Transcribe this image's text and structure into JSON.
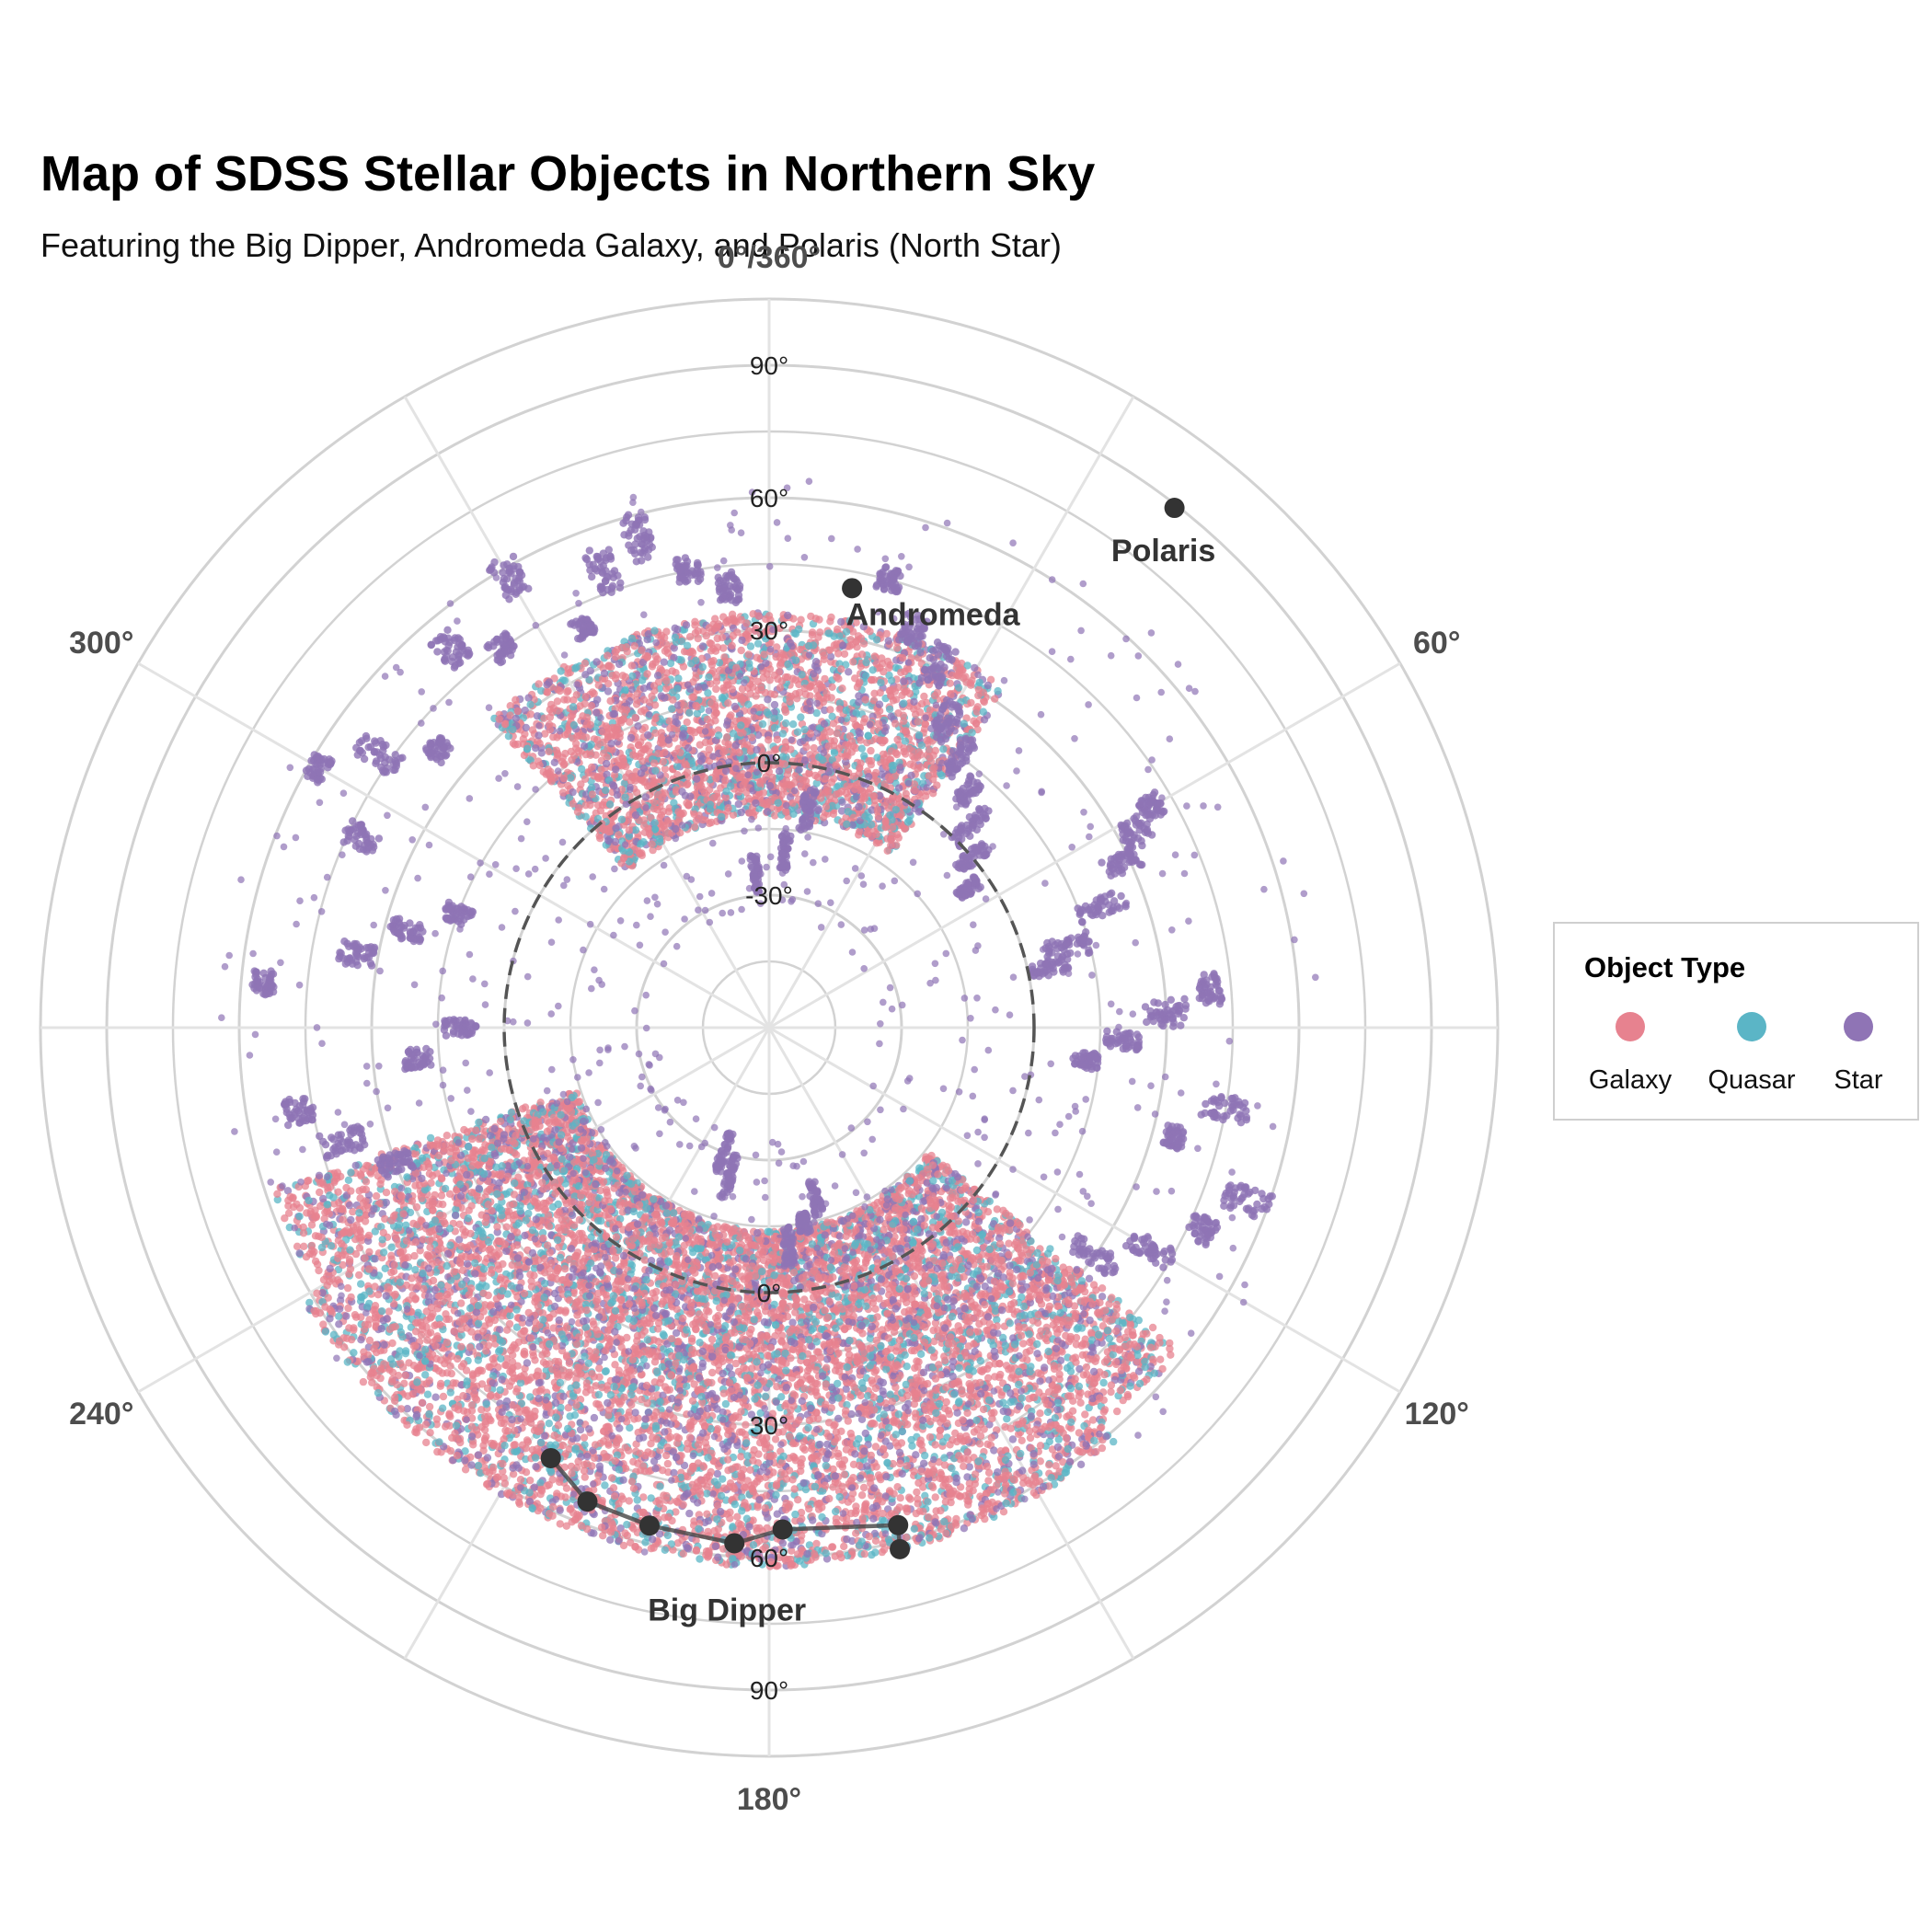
{
  "title": "Map of SDSS Stellar Objects in Northern Sky",
  "subtitle": "Featuring the Big Dipper, Andromeda Galaxy, and Polaris (North Star)",
  "legend": {
    "title": "Object Type",
    "items": [
      {
        "label": "Galaxy",
        "color": "#E7828F"
      },
      {
        "label": "Quasar",
        "color": "#5BB5C6"
      },
      {
        "label": "Star",
        "color": "#8F74B5"
      }
    ]
  },
  "chart_data": {
    "type": "scatter",
    "coord": "polar",
    "theta_ticks": [
      {
        "deg": 0,
        "label": "0°/360°"
      },
      {
        "deg": 60,
        "label": "60°"
      },
      {
        "deg": 120,
        "label": "120°"
      },
      {
        "deg": 180,
        "label": "180°"
      },
      {
        "deg": 240,
        "label": "240°"
      },
      {
        "deg": 300,
        "label": "300°"
      }
    ],
    "r_ticks": [
      {
        "value": -30,
        "label": "-30°"
      },
      {
        "value": 0,
        "label": "0°"
      },
      {
        "value": 30,
        "label": "30°"
      },
      {
        "value": 60,
        "label": "60°"
      },
      {
        "value": 90,
        "label": "90°"
      }
    ],
    "r_range": [
      -60,
      90
    ],
    "theta_range": [
      0,
      360
    ],
    "legend_position": "right",
    "grid": true,
    "series_colors": {
      "Galaxy": "#E7828F",
      "Quasar": "#5BB5C6",
      "Star": "#8F74B5"
    },
    "regions": [
      {
        "name": "Galaxy",
        "ra": [
          130,
          250
        ],
        "dec": [
          -15,
          60
        ],
        "density": "high"
      },
      {
        "name": "Galaxy",
        "ra": [
          315,
          395
        ],
        "dec": [
          -10,
          35
        ],
        "density": "high"
      },
      {
        "name": "Quasar",
        "ra": [
          130,
          250
        ],
        "dec": [
          -15,
          60
        ],
        "density": "medium"
      },
      {
        "name": "Quasar",
        "ra": [
          315,
          395
        ],
        "dec": [
          -10,
          35
        ],
        "density": "medium"
      },
      {
        "name": "Star",
        "ra": [
          0,
          360
        ],
        "dec": [
          -35,
          70
        ],
        "density": "stripes"
      }
    ],
    "landmarks": [
      {
        "name": "Polaris",
        "ra": 37.95,
        "dec": 89.26
      },
      {
        "name": "Andromeda",
        "ra": 10.68,
        "dec": 41.27
      }
    ],
    "big_dipper": {
      "name": "Big Dipper",
      "stars": [
        {
          "ra": 165.93,
          "dec": 61.75
        },
        {
          "ra": 165.46,
          "dec": 56.38
        },
        {
          "ra": 178.46,
          "dec": 53.69
        },
        {
          "ra": 183.86,
          "dec": 57.03
        },
        {
          "ra": 193.51,
          "dec": 55.96
        },
        {
          "ra": 200.98,
          "dec": 54.93
        },
        {
          "ra": 206.89,
          "dec": 49.31
        }
      ]
    },
    "reference_circle": {
      "dec": 0,
      "style": "dashed"
    }
  }
}
